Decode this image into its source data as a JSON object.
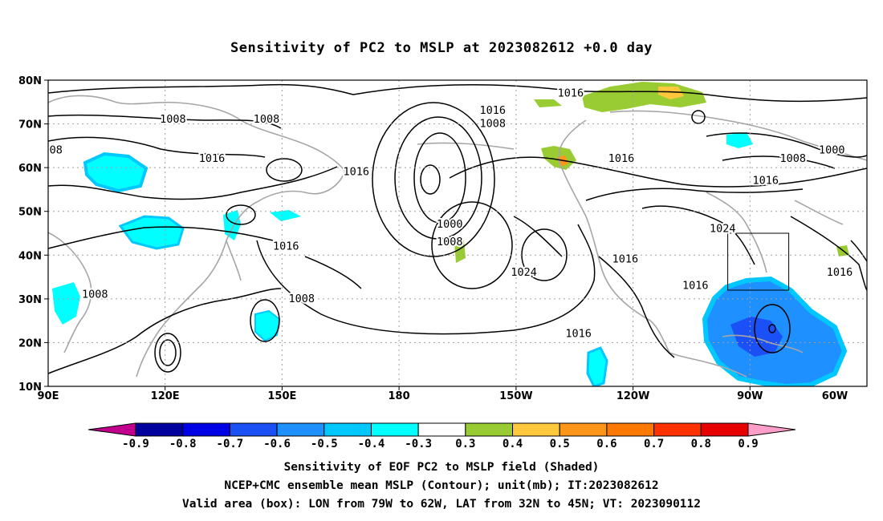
{
  "title": "Sensitivity of PC2 to MSLP at 2023082612 +0.0 day",
  "map": {
    "lat_ticks": [
      "80N",
      "70N",
      "60N",
      "50N",
      "40N",
      "30N",
      "20N",
      "10N"
    ],
    "lon_ticks": [
      "90E",
      "120E",
      "150E",
      "180",
      "150W",
      "120W",
      "90W",
      "60W"
    ],
    "extent": {
      "lon_min": 90,
      "lon_max": 300,
      "lat_min": 10,
      "lat_max": 80
    },
    "valid_box": {
      "lon_west": "79W",
      "lon_east": "62W",
      "lat_south": "32N",
      "lat_north": "45N"
    },
    "contour_labels": [
      {
        "text": "1016",
        "lon": 224,
        "lat": 77
      },
      {
        "text": "1008",
        "lon": 122,
        "lat": 71
      },
      {
        "text": "1008",
        "lon": 146,
        "lat": 71
      },
      {
        "text": "1016",
        "lon": 204,
        "lat": 73
      },
      {
        "text": "1008",
        "lon": 204,
        "lat": 70
      },
      {
        "text": "08",
        "lon": 92,
        "lat": 64
      },
      {
        "text": "1016",
        "lon": 132,
        "lat": 62
      },
      {
        "text": "1016",
        "lon": 237,
        "lat": 62
      },
      {
        "text": "1016",
        "lon": 169,
        "lat": 59
      },
      {
        "text": "1008",
        "lon": 281,
        "lat": 62
      },
      {
        "text": "1000",
        "lon": 291,
        "lat": 64
      },
      {
        "text": "1016",
        "lon": 274,
        "lat": 57
      },
      {
        "text": "1000",
        "lon": 193,
        "lat": 47
      },
      {
        "text": "1008",
        "lon": 193,
        "lat": 43
      },
      {
        "text": "1024",
        "lon": 263,
        "lat": 46
      },
      {
        "text": "1016",
        "lon": 151,
        "lat": 42
      },
      {
        "text": "1016",
        "lon": 238,
        "lat": 39
      },
      {
        "text": "1024",
        "lon": 212,
        "lat": 36
      },
      {
        "text": "1016",
        "lon": 293,
        "lat": 36
      },
      {
        "text": "1016",
        "lon": 256,
        "lat": 33
      },
      {
        "text": "1008",
        "lon": 102,
        "lat": 31
      },
      {
        "text": "1008",
        "lon": 155,
        "lat": 30
      },
      {
        "text": "1016",
        "lon": 226,
        "lat": 22
      }
    ]
  },
  "colorbar": {
    "labels": [
      "-0.9",
      "-0.8",
      "-0.7",
      "-0.6",
      "-0.5",
      "-0.4",
      "-0.3",
      "0.3",
      "0.4",
      "0.5",
      "0.6",
      "0.7",
      "0.8",
      "0.9"
    ],
    "colors": [
      "#00009e",
      "#0000e6",
      "#1a50f5",
      "#1e90ff",
      "#00c8ff",
      "#00ffff",
      "#ffffff",
      "#99cc33",
      "#ffc83c",
      "#ff9619",
      "#ff7800",
      "#ff3200",
      "#e60000"
    ],
    "low_arrow_color": "#c0008c",
    "high_arrow_color": "#ff9ec8"
  },
  "captions": {
    "line1": "Sensitivity of EOF PC2 to MSLP field (Shaded)",
    "line2": "NCEP+CMC ensemble mean MSLP (Contour); unit(mb); IT:2023082612",
    "line3": "Valid area (box): LON from 79W to 62W, LAT from 32N to 45N; VT: 2023090112"
  }
}
